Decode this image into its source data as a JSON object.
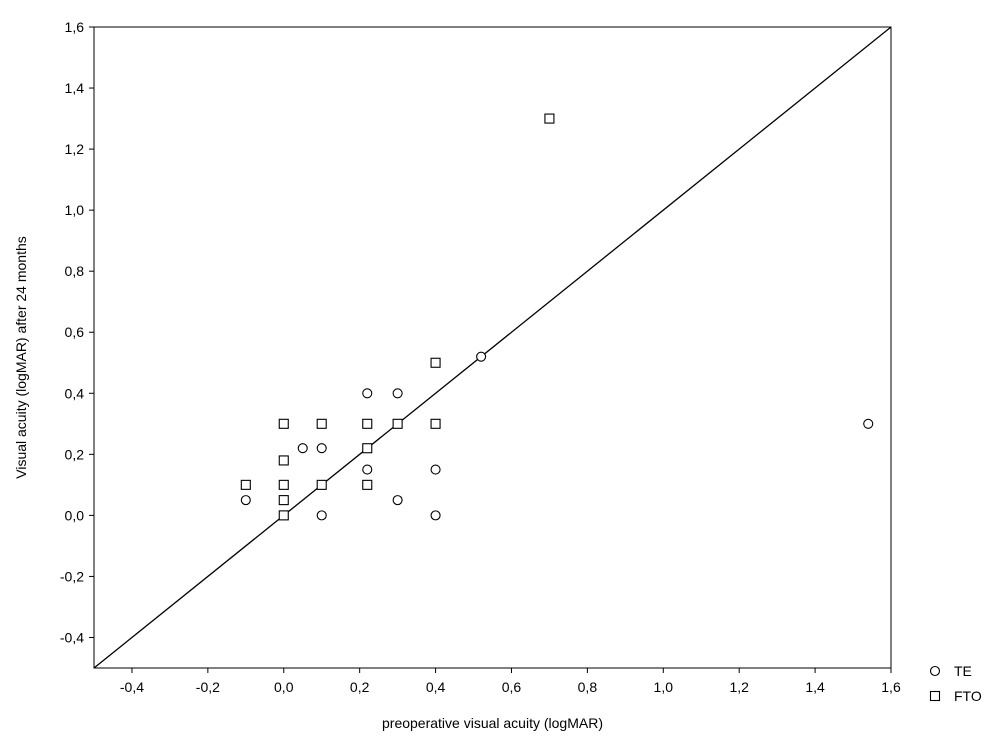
{
  "chart_data": {
    "type": "scatter",
    "title": "",
    "xlabel": "preoperative visual acuity (logMAR)",
    "ylabel": "Visual acuity (logMAR) after 24 months",
    "xlim": [
      -0.5,
      1.6
    ],
    "ylim": [
      -0.5,
      1.6
    ],
    "xticks": [
      -0.4,
      -0.2,
      0.0,
      0.2,
      0.4,
      0.6,
      0.8,
      1.0,
      1.2,
      1.4,
      1.6
    ],
    "yticks": [
      -0.4,
      -0.2,
      0.0,
      0.2,
      0.4,
      0.6,
      0.8,
      1.0,
      1.2,
      1.4,
      1.6
    ],
    "xtick_labels": [
      "-0,4",
      "-0,2",
      "0,0",
      "0,2",
      "0,4",
      "0,6",
      "0,8",
      "1,0",
      "1,2",
      "1,4",
      "1,6"
    ],
    "ytick_labels": [
      "-0,4",
      "-0,2",
      "0,0",
      "0,2",
      "0,4",
      "0,6",
      "0,8",
      "1,0",
      "1,2",
      "1,4",
      "1,6"
    ],
    "grid": false,
    "reference_line": {
      "type": "identity",
      "from": [
        -0.5,
        -0.5
      ],
      "to": [
        1.6,
        1.6
      ]
    },
    "legend": {
      "placement": "bottom-right outside"
    },
    "series": [
      {
        "name": "TE",
        "marker": "circle",
        "color": "#000000",
        "x": [
          -0.1,
          0.05,
          0.1,
          0.1,
          0.22,
          0.22,
          0.3,
          0.3,
          0.4,
          0.4,
          0.52,
          1.54
        ],
        "y": [
          0.05,
          0.22,
          0.22,
          0.0,
          0.4,
          0.15,
          0.4,
          0.05,
          0.15,
          0.0,
          0.52,
          0.3
        ]
      },
      {
        "name": "FTO",
        "marker": "square",
        "color": "#000000",
        "x": [
          -0.1,
          0.0,
          0.0,
          0.0,
          0.0,
          0.0,
          0.1,
          0.1,
          0.22,
          0.22,
          0.22,
          0.3,
          0.4,
          0.4,
          0.7
        ],
        "y": [
          0.1,
          0.3,
          0.18,
          0.1,
          0.05,
          0.0,
          0.3,
          0.1,
          0.3,
          0.22,
          0.1,
          0.3,
          0.5,
          0.3,
          1.3
        ]
      }
    ]
  }
}
